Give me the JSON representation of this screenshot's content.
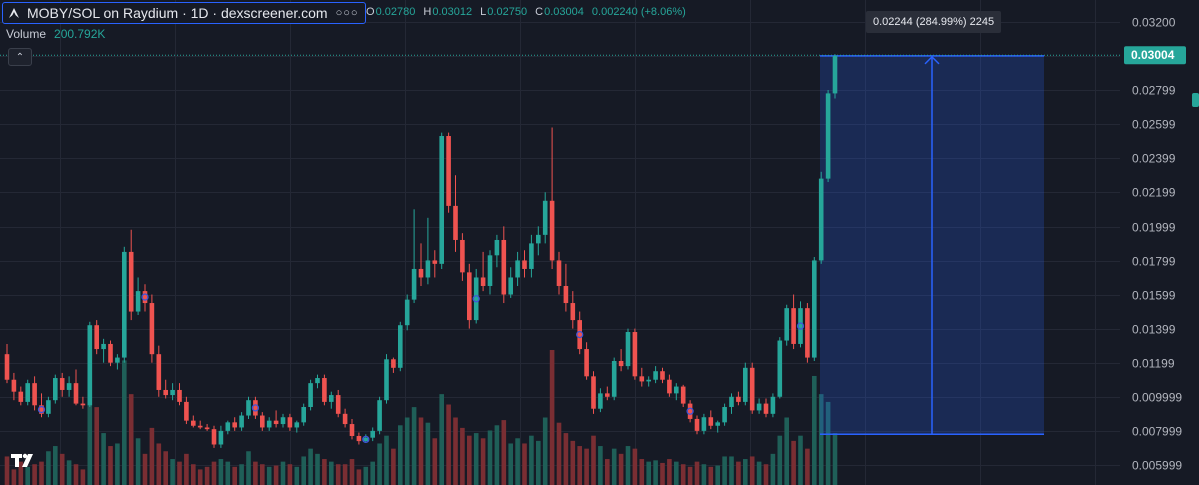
{
  "header": {
    "title": "MOBY/SOL on Raydium · 1D · dexscreener.com",
    "more_icon": "ellipsis-icon",
    "logo_icon": "dexscreener-logo-icon"
  },
  "ohlc": {
    "o_label": "O",
    "o_value": "0.02780",
    "h_label": "H",
    "h_value": "0.03012",
    "l_label": "L",
    "l_value": "0.02750",
    "c_label": "C",
    "c_value": "0.03004",
    "change": "0.002240 (+8.06%)"
  },
  "volume": {
    "label": "Volume",
    "value": "200.792K"
  },
  "measure": {
    "label": "0.02244 (284.99%) 2245"
  },
  "colors": {
    "background": "#161a25",
    "up": "#26a69a",
    "down": "#ef5350",
    "accent": "#2962ff",
    "grid": "#242835",
    "text": "#b2b5be"
  },
  "chart_data": {
    "type": "candlestick",
    "ylim": [
      0.005,
      0.0324
    ],
    "yticks": [
      "0.03200",
      "0.02999",
      "0.02799",
      "0.02599",
      "0.02399",
      "0.02199",
      "0.01999",
      "0.01799",
      "0.01599",
      "0.01399",
      "0.01199",
      "0.009999",
      "0.007999",
      "0.005999"
    ],
    "ytick_values": [
      0.032,
      0.02999,
      0.02799,
      0.02599,
      0.02399,
      0.02199,
      0.01999,
      0.01799,
      0.01599,
      0.01399,
      0.01199,
      0.009999,
      0.007999,
      0.005999
    ],
    "last_price": "0.03004",
    "last_price_value": 0.03004,
    "measure_range": {
      "from": 0.0078,
      "to": 0.03
    },
    "candles": [
      [
        0.0125,
        0.0131,
        0.0108,
        0.011,
        110
      ],
      [
        0.011,
        0.0114,
        0.0098,
        0.0103,
        60
      ],
      [
        0.0103,
        0.0106,
        0.0095,
        0.0097,
        90
      ],
      [
        0.0097,
        0.011,
        0.0095,
        0.0108,
        70
      ],
      [
        0.0108,
        0.0112,
        0.0092,
        0.0095,
        80
      ],
      [
        0.0095,
        0.0102,
        0.0088,
        0.009,
        90
      ],
      [
        0.009,
        0.01,
        0.0088,
        0.0098,
        130
      ],
      [
        0.0098,
        0.0113,
        0.0096,
        0.0111,
        150
      ],
      [
        0.0111,
        0.0114,
        0.01,
        0.0104,
        120
      ],
      [
        0.0104,
        0.0112,
        0.01,
        0.0108,
        95
      ],
      [
        0.0108,
        0.0116,
        0.0095,
        0.0096,
        80
      ],
      [
        0.0096,
        0.01,
        0.0093,
        0.0095,
        60
      ],
      [
        0.0095,
        0.0144,
        0.0094,
        0.0142,
        520
      ],
      [
        0.0142,
        0.0145,
        0.0125,
        0.0128,
        300
      ],
      [
        0.0128,
        0.0134,
        0.012,
        0.0131,
        200
      ],
      [
        0.0131,
        0.0133,
        0.0118,
        0.012,
        150
      ],
      [
        0.012,
        0.0125,
        0.0116,
        0.0123,
        160
      ],
      [
        0.0123,
        0.0188,
        0.012,
        0.0185,
        480
      ],
      [
        0.0185,
        0.0198,
        0.0145,
        0.015,
        350
      ],
      [
        0.015,
        0.017,
        0.0148,
        0.0162,
        180
      ],
      [
        0.0162,
        0.0166,
        0.015,
        0.0155,
        120
      ],
      [
        0.0155,
        0.016,
        0.012,
        0.0125,
        220
      ],
      [
        0.0125,
        0.013,
        0.01,
        0.0104,
        160
      ],
      [
        0.0104,
        0.011,
        0.0099,
        0.0101,
        130
      ],
      [
        0.0101,
        0.0108,
        0.0098,
        0.0104,
        100
      ],
      [
        0.0104,
        0.0108,
        0.0095,
        0.0097,
        90
      ],
      [
        0.0097,
        0.01,
        0.0084,
        0.0086,
        120
      ],
      [
        0.0086,
        0.0089,
        0.0082,
        0.0083,
        80
      ],
      [
        0.0083,
        0.0086,
        0.0081,
        0.0082,
        60
      ],
      [
        0.0082,
        0.0084,
        0.008,
        0.0081,
        70
      ],
      [
        0.0081,
        0.0083,
        0.007,
        0.0072,
        90
      ],
      [
        0.0072,
        0.0083,
        0.007,
        0.008,
        100
      ],
      [
        0.008,
        0.0086,
        0.0078,
        0.0085,
        90
      ],
      [
        0.0085,
        0.0088,
        0.008,
        0.0082,
        70
      ],
      [
        0.0082,
        0.0091,
        0.008,
        0.0089,
        80
      ],
      [
        0.0089,
        0.01,
        0.0087,
        0.0098,
        130
      ],
      [
        0.0098,
        0.01,
        0.0087,
        0.0089,
        90
      ],
      [
        0.0089,
        0.0091,
        0.008,
        0.0082,
        80
      ],
      [
        0.0082,
        0.0088,
        0.008,
        0.0086,
        70
      ],
      [
        0.0086,
        0.0092,
        0.0082,
        0.0084,
        75
      ],
      [
        0.0084,
        0.009,
        0.0082,
        0.0088,
        90
      ],
      [
        0.0088,
        0.009,
        0.008,
        0.0082,
        80
      ],
      [
        0.0082,
        0.0086,
        0.0079,
        0.0085,
        70
      ],
      [
        0.0085,
        0.0096,
        0.0083,
        0.0094,
        110
      ],
      [
        0.0094,
        0.011,
        0.0092,
        0.0108,
        140
      ],
      [
        0.0108,
        0.0113,
        0.0105,
        0.0111,
        120
      ],
      [
        0.0111,
        0.0113,
        0.0095,
        0.0097,
        100
      ],
      [
        0.0097,
        0.0103,
        0.0093,
        0.0101,
        90
      ],
      [
        0.0101,
        0.0104,
        0.0088,
        0.009,
        80
      ],
      [
        0.009,
        0.0093,
        0.0082,
        0.0084,
        80
      ],
      [
        0.0084,
        0.0087,
        0.0075,
        0.0077,
        100
      ],
      [
        0.0077,
        0.0079,
        0.0072,
        0.0074,
        60
      ],
      [
        0.0074,
        0.0078,
        0.0073,
        0.0076,
        70
      ],
      [
        0.0076,
        0.0082,
        0.0074,
        0.008,
        90
      ],
      [
        0.008,
        0.01,
        0.0078,
        0.0098,
        160
      ],
      [
        0.0098,
        0.0125,
        0.0096,
        0.0122,
        190
      ],
      [
        0.0122,
        0.0123,
        0.0114,
        0.0117,
        140
      ],
      [
        0.0117,
        0.0144,
        0.0115,
        0.0142,
        230
      ],
      [
        0.0142,
        0.016,
        0.0139,
        0.0157,
        260
      ],
      [
        0.0157,
        0.021,
        0.0155,
        0.0175,
        300
      ],
      [
        0.0175,
        0.019,
        0.0165,
        0.017,
        260
      ],
      [
        0.017,
        0.0205,
        0.0166,
        0.018,
        240
      ],
      [
        0.018,
        0.0186,
        0.017,
        0.0178,
        180
      ],
      [
        0.0178,
        0.0255,
        0.0175,
        0.0253,
        350
      ],
      [
        0.0253,
        0.0255,
        0.0208,
        0.0212,
        310
      ],
      [
        0.0212,
        0.023,
        0.0185,
        0.0192,
        260
      ],
      [
        0.0192,
        0.0196,
        0.0168,
        0.0173,
        220
      ],
      [
        0.0173,
        0.0178,
        0.014,
        0.0145,
        190
      ],
      [
        0.0145,
        0.0175,
        0.0143,
        0.017,
        200
      ],
      [
        0.017,
        0.0185,
        0.0162,
        0.0165,
        180
      ],
      [
        0.0165,
        0.0186,
        0.016,
        0.0183,
        210
      ],
      [
        0.0183,
        0.0195,
        0.0176,
        0.0192,
        230
      ],
      [
        0.0192,
        0.02,
        0.0155,
        0.016,
        250
      ],
      [
        0.016,
        0.0176,
        0.0158,
        0.017,
        160
      ],
      [
        0.017,
        0.0185,
        0.0165,
        0.018,
        180
      ],
      [
        0.018,
        0.0186,
        0.017,
        0.0175,
        160
      ],
      [
        0.0175,
        0.0195,
        0.017,
        0.019,
        190
      ],
      [
        0.019,
        0.02,
        0.0183,
        0.0195,
        170
      ],
      [
        0.0195,
        0.022,
        0.019,
        0.0215,
        260
      ],
      [
        0.0215,
        0.0258,
        0.0175,
        0.018,
        520
      ],
      [
        0.018,
        0.0185,
        0.016,
        0.0165,
        240
      ],
      [
        0.0165,
        0.0178,
        0.015,
        0.0155,
        200
      ],
      [
        0.0155,
        0.0162,
        0.014,
        0.0145,
        170
      ],
      [
        0.0145,
        0.015,
        0.0125,
        0.0128,
        150
      ],
      [
        0.0128,
        0.0132,
        0.011,
        0.0112,
        140
      ],
      [
        0.0112,
        0.0115,
        0.009,
        0.0093,
        190
      ],
      [
        0.0093,
        0.0105,
        0.0091,
        0.0102,
        150
      ],
      [
        0.0102,
        0.0106,
        0.0098,
        0.01,
        100
      ],
      [
        0.01,
        0.0123,
        0.0098,
        0.0121,
        140
      ],
      [
        0.0121,
        0.0128,
        0.0115,
        0.0118,
        120
      ],
      [
        0.0118,
        0.014,
        0.0116,
        0.0138,
        150
      ],
      [
        0.0138,
        0.014,
        0.011,
        0.0112,
        140
      ],
      [
        0.0112,
        0.0117,
        0.0106,
        0.0109,
        100
      ],
      [
        0.0109,
        0.0112,
        0.0106,
        0.011,
        90
      ],
      [
        0.011,
        0.0118,
        0.0108,
        0.0115,
        95
      ],
      [
        0.0115,
        0.0117,
        0.0108,
        0.011,
        85
      ],
      [
        0.011,
        0.0113,
        0.01,
        0.0102,
        100
      ],
      [
        0.0102,
        0.0108,
        0.0098,
        0.0106,
        90
      ],
      [
        0.0106,
        0.0107,
        0.0094,
        0.0096,
        80
      ],
      [
        0.0096,
        0.0098,
        0.0085,
        0.0087,
        70
      ],
      [
        0.0087,
        0.0089,
        0.0078,
        0.008,
        90
      ],
      [
        0.008,
        0.009,
        0.0078,
        0.0088,
        80
      ],
      [
        0.0088,
        0.0092,
        0.0081,
        0.0083,
        70
      ],
      [
        0.0083,
        0.0086,
        0.0079,
        0.0085,
        75
      ],
      [
        0.0085,
        0.0096,
        0.0083,
        0.0094,
        110
      ],
      [
        0.0094,
        0.0102,
        0.009,
        0.01,
        110
      ],
      [
        0.01,
        0.0103,
        0.0095,
        0.0097,
        90
      ],
      [
        0.0097,
        0.012,
        0.0095,
        0.0117,
        100
      ],
      [
        0.0117,
        0.012,
        0.009,
        0.0092,
        110
      ],
      [
        0.0092,
        0.0099,
        0.009,
        0.0096,
        90
      ],
      [
        0.0096,
        0.0099,
        0.0088,
        0.009,
        80
      ],
      [
        0.009,
        0.0102,
        0.0088,
        0.01,
        120
      ],
      [
        0.01,
        0.0135,
        0.0099,
        0.0133,
        190
      ],
      [
        0.0133,
        0.0154,
        0.013,
        0.0152,
        260
      ],
      [
        0.0152,
        0.016,
        0.0128,
        0.0131,
        170
      ],
      [
        0.0131,
        0.0156,
        0.0129,
        0.0152,
        190
      ],
      [
        0.0152,
        0.0155,
        0.012,
        0.0123,
        140
      ],
      [
        0.0123,
        0.0182,
        0.0121,
        0.018,
        420
      ],
      [
        0.018,
        0.0232,
        0.0178,
        0.0228,
        350
      ],
      [
        0.0228,
        0.028,
        0.0226,
        0.0278,
        320
      ],
      [
        0.0278,
        0.0301,
        0.0275,
        0.03,
        200
      ]
    ]
  }
}
